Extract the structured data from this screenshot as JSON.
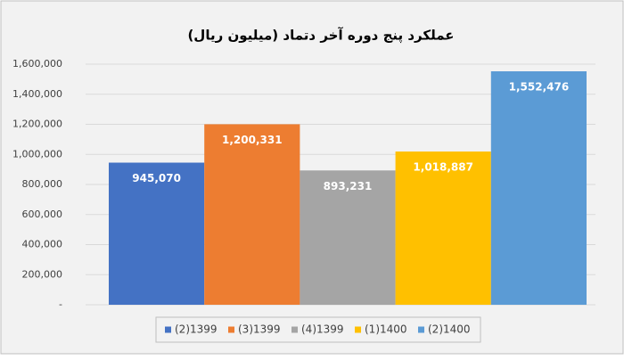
{
  "chart_data": {
    "type": "bar",
    "title": "عملکرد پنج دوره آخر دتماد (میلیون ریال)",
    "categories": [
      null
    ],
    "series": [
      {
        "name": "(2)1399",
        "color": "#4472c4",
        "values": [
          945070
        ],
        "value_labels": [
          "945,070"
        ]
      },
      {
        "name": "(3)1399",
        "color": "#ed7d31",
        "values": [
          1200331
        ],
        "value_labels": [
          "1,200,331"
        ]
      },
      {
        "name": "(4)1399",
        "color": "#a5a5a5",
        "values": [
          893231
        ],
        "value_labels": [
          "893,231"
        ]
      },
      {
        "name": "(1)1400",
        "color": "#ffc000",
        "values": [
          1018887
        ],
        "value_labels": [
          "1,018,887"
        ]
      },
      {
        "name": "(2)1400",
        "color": "#5b9bd5",
        "values": [
          1552476
        ],
        "value_labels": [
          "1,552,476"
        ]
      }
    ],
    "ylim": [
      0,
      1600000
    ],
    "yticks": [
      {
        "value": 0,
        "label": "-"
      },
      {
        "value": 200000,
        "label": "200,000"
      },
      {
        "value": 400000,
        "label": "400,000"
      },
      {
        "value": 600000,
        "label": "600,000"
      },
      {
        "value": 800000,
        "label": "800,000"
      },
      {
        "value": 1000000,
        "label": "1,000,000"
      },
      {
        "value": 1200000,
        "label": "1,200,000"
      },
      {
        "value": 1400000,
        "label": "1,400,000"
      },
      {
        "value": 1600000,
        "label": "1,600,000"
      }
    ],
    "grid": true,
    "legend": "bottom"
  }
}
